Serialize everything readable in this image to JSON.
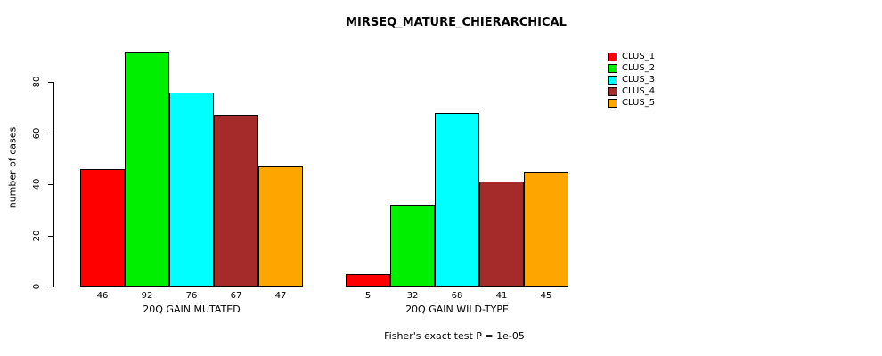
{
  "title": "MIRSEQ_MATURE_CHIERARCHICAL",
  "ylabel": "number of cases",
  "footer": "Fisher's exact test P = 1e-05",
  "chart_data": {
    "type": "bar",
    "title": "MIRSEQ_MATURE_CHIERARCHICAL",
    "ylabel": "number of cases",
    "annotation": "Fisher's exact test P = 1e-05",
    "groups": [
      {
        "label": "20Q GAIN MUTATED",
        "values": [
          46,
          92,
          76,
          67,
          47
        ]
      },
      {
        "label": "20Q GAIN WILD-TYPE",
        "values": [
          5,
          32,
          68,
          41,
          45
        ]
      }
    ],
    "series": [
      {
        "name": "CLUS_1",
        "color": "#ff0000"
      },
      {
        "name": "CLUS_2",
        "color": "#00ee00"
      },
      {
        "name": "CLUS_3",
        "color": "#00ffff"
      },
      {
        "name": "CLUS_4",
        "color": "#a52a2a"
      },
      {
        "name": "CLUS_5",
        "color": "#ffa500"
      }
    ],
    "yticks": [
      0,
      20,
      40,
      60,
      80
    ],
    "ylim": [
      0,
      92
    ],
    "grid": false,
    "legend_position": "right",
    "bar_value_labels_shown_below_axis": true
  }
}
